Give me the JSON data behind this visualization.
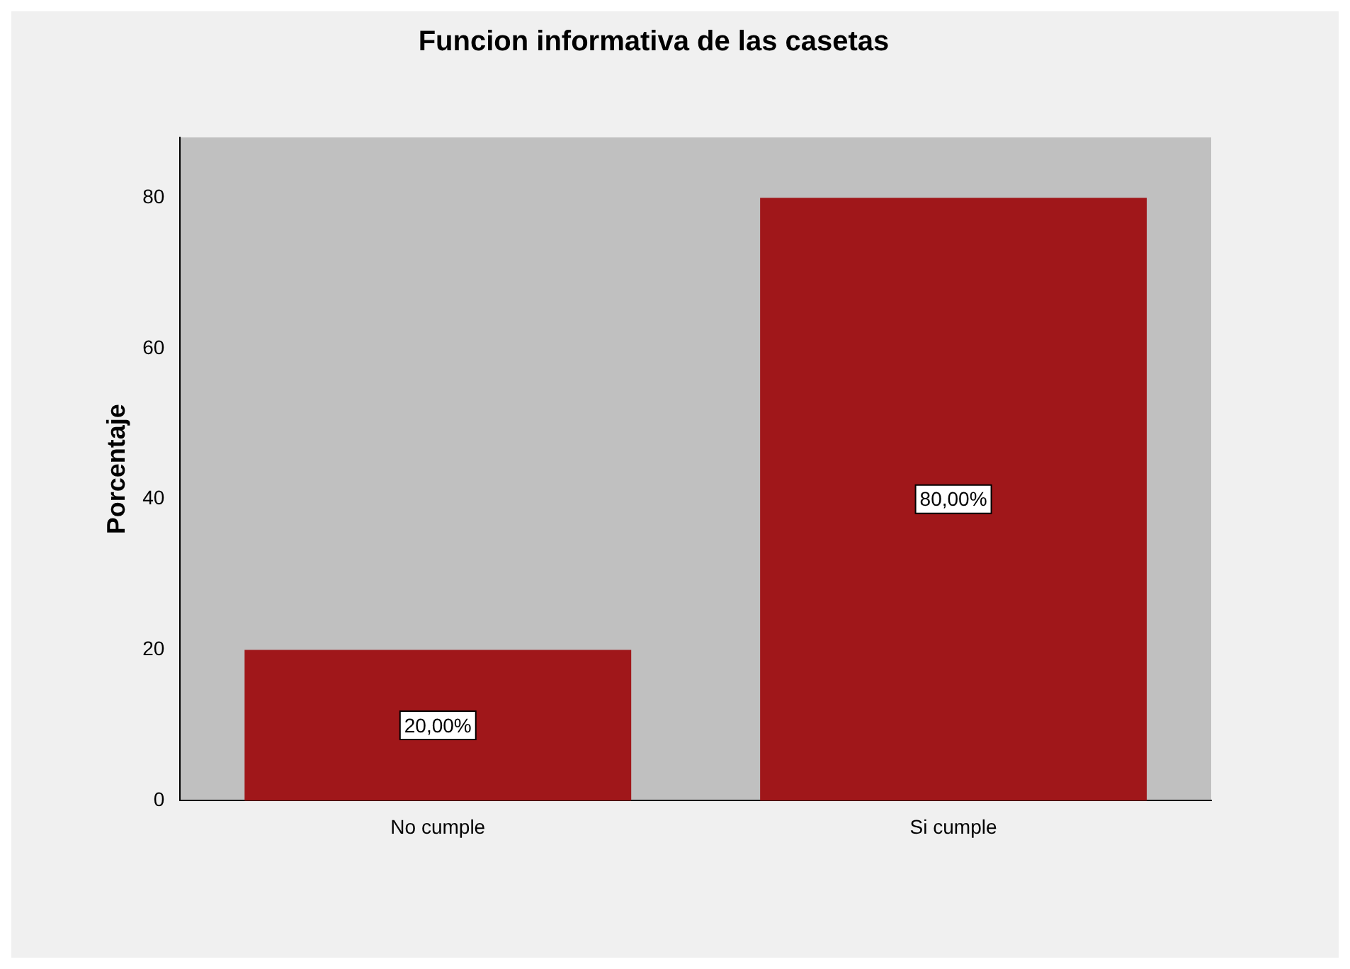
{
  "chart_data": {
    "type": "bar",
    "title": "Funcion informativa de las casetas",
    "ylabel": "Porcentaje",
    "categories": [
      "No cumple",
      "Si cumple"
    ],
    "values": [
      20,
      80
    ],
    "value_labels": [
      "20,00%",
      "80,00%"
    ],
    "color": "#a0171a",
    "ylim": [
      0,
      88
    ],
    "yticks": [
      0,
      20,
      40,
      60,
      80
    ],
    "grid": false,
    "legend": false
  }
}
